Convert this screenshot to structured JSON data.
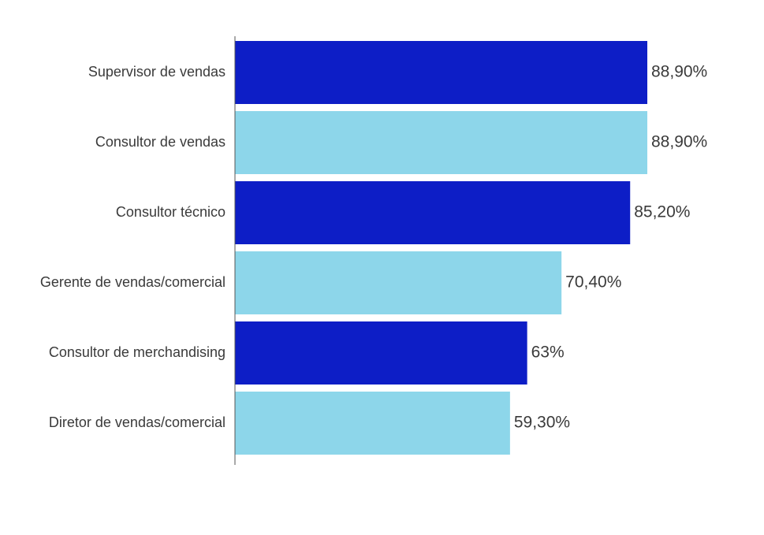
{
  "chart_data": {
    "type": "bar",
    "orientation": "horizontal",
    "categories": [
      "Supervisor de vendas",
      "Consultor de vendas",
      "Consultor técnico",
      "Gerente de vendas/comercial",
      "Consultor de merchandising",
      "Diretor de vendas/comercial"
    ],
    "values": [
      88.9,
      88.9,
      85.2,
      70.4,
      63,
      59.3
    ],
    "value_labels": [
      "88,90%",
      "88,90%",
      "85,20%",
      "70,40%",
      "63%",
      "59,30%"
    ],
    "bar_colors": [
      "#0d1ec6",
      "#8dd6ea",
      "#0d1ec6",
      "#8dd6ea",
      "#0d1ec6",
      "#8dd6ea"
    ],
    "xlim": [
      0,
      100
    ],
    "grid": false,
    "legend": "none"
  }
}
